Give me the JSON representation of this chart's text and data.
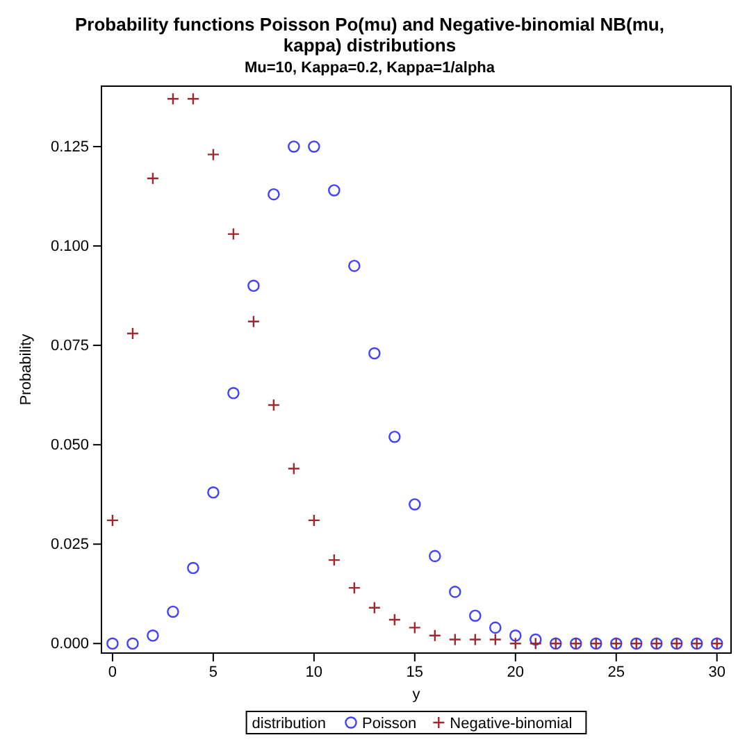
{
  "chart_data": {
    "type": "scatter",
    "title": "Probability functions Poisson Po(mu) and Negative-binomial NB(mu, kappa) distributions",
    "subtitle": "Mu=10, Kappa=0.2, Kappa=1/alpha",
    "xlabel": "y",
    "ylabel": "Probability",
    "legend_title": "distribution",
    "legend": "bottom",
    "grid": false,
    "x": [
      0,
      1,
      2,
      3,
      4,
      5,
      6,
      7,
      8,
      9,
      10,
      11,
      12,
      13,
      14,
      15,
      16,
      17,
      18,
      19,
      20,
      21,
      22,
      23,
      24,
      25,
      26,
      27,
      28,
      29,
      30
    ],
    "xlim": [
      -0.55,
      30.7
    ],
    "xticks": [
      0,
      5,
      10,
      15,
      20,
      25,
      30
    ],
    "ylim": [
      -0.0024,
      0.1402
    ],
    "yticks": [
      {
        "value": 0,
        "label": "0.000"
      },
      {
        "value": 0.025,
        "label": "0.025"
      },
      {
        "value": 0.05,
        "label": "0.050"
      },
      {
        "value": 0.075,
        "label": "0.075"
      },
      {
        "value": 0.1,
        "label": "0.100"
      },
      {
        "value": 0.125,
        "label": "0.125"
      }
    ],
    "series": [
      {
        "name": "Poisson",
        "color": "#4040ff",
        "marker": "circle",
        "values": [
          0.0,
          0.0,
          0.002,
          0.008,
          0.019,
          0.038,
          0.063,
          0.09,
          0.113,
          0.125,
          0.125,
          0.114,
          0.095,
          0.073,
          0.052,
          0.035,
          0.022,
          0.013,
          0.007,
          0.004,
          0.002,
          0.001,
          0.0,
          0.0,
          0.0,
          0.0,
          0.0,
          0.0,
          0.0,
          0.0,
          0.0
        ]
      },
      {
        "name": "Negative-binomial",
        "color": "#a0282d",
        "marker": "cross",
        "values": [
          0.031,
          0.078,
          0.117,
          0.137,
          0.137,
          0.123,
          0.103,
          0.081,
          0.06,
          0.044,
          0.031,
          0.021,
          0.014,
          0.009,
          0.006,
          0.004,
          0.002,
          0.001,
          0.001,
          0.001,
          0.0,
          0.0,
          0.0,
          0.0,
          0.0,
          0.0,
          0.0,
          0.0,
          0.0,
          0.0,
          0.0
        ]
      }
    ]
  }
}
